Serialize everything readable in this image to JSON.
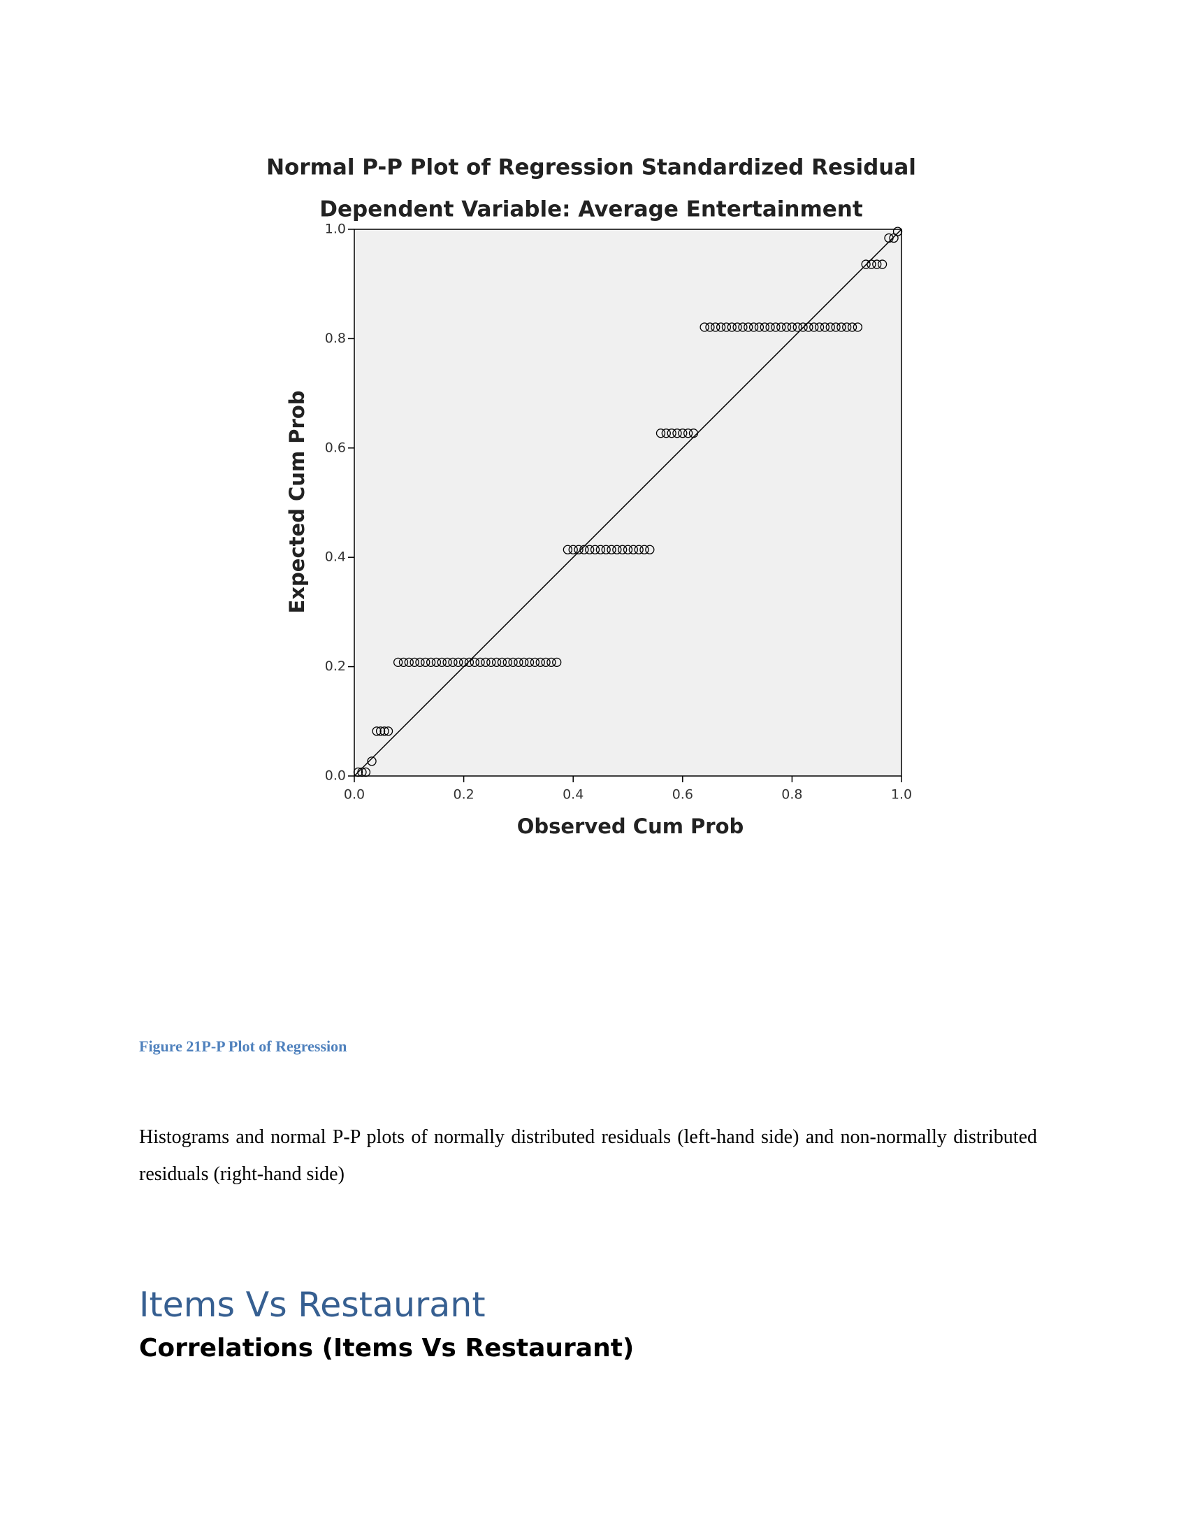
{
  "chart_data": {
    "type": "scatter",
    "title": "Normal P-P Plot of Regression Standardized Residual",
    "subtitle": "Dependent Variable: Average Entertainment",
    "x_label": "Observed Cum Prob",
    "y_label": "Expected Cum Prob",
    "xlim": [
      0,
      1
    ],
    "ylim": [
      0,
      1
    ],
    "xticks": [
      {
        "value": 0,
        "label": "0.0"
      },
      0.2,
      0.4,
      0.6,
      0.8,
      {
        "value": 1,
        "label": "1.0"
      }
    ],
    "yticks": [
      {
        "value": 0,
        "label": "0.0"
      },
      0.2,
      0.4,
      0.6,
      0.8,
      {
        "value": 1,
        "label": "1.0"
      }
    ],
    "color": "#000000",
    "background": "#f0f0f0",
    "x": [
      0.007,
      0.014,
      0.021,
      0.032,
      0.041,
      0.048,
      0.055,
      0.062,
      0.08,
      0.09,
      0.1,
      0.11,
      0.12,
      0.13,
      0.14,
      0.15,
      0.16,
      0.17,
      0.18,
      0.19,
      0.2,
      0.21,
      0.22,
      0.23,
      0.24,
      0.25,
      0.26,
      0.27,
      0.28,
      0.29,
      0.3,
      0.31,
      0.32,
      0.33,
      0.34,
      0.35,
      0.36,
      0.37,
      0.39,
      0.4,
      0.41,
      0.42,
      0.43,
      0.44,
      0.45,
      0.46,
      0.47,
      0.48,
      0.49,
      0.5,
      0.51,
      0.52,
      0.53,
      0.54,
      0.56,
      0.57,
      0.58,
      0.59,
      0.6,
      0.61,
      0.62,
      0.64,
      0.65,
      0.66,
      0.67,
      0.68,
      0.69,
      0.7,
      0.71,
      0.72,
      0.73,
      0.74,
      0.75,
      0.76,
      0.77,
      0.78,
      0.79,
      0.8,
      0.81,
      0.82,
      0.83,
      0.84,
      0.85,
      0.86,
      0.87,
      0.88,
      0.89,
      0.9,
      0.91,
      0.92,
      0.935,
      0.945,
      0.955,
      0.965,
      0.977,
      0.986,
      0.993
    ],
    "values": [
      0.007,
      0.007,
      0.007,
      0.027,
      0.082,
      0.082,
      0.082,
      0.082,
      0.208,
      0.208,
      0.208,
      0.208,
      0.208,
      0.208,
      0.208,
      0.208,
      0.208,
      0.208,
      0.208,
      0.208,
      0.208,
      0.208,
      0.208,
      0.208,
      0.208,
      0.208,
      0.208,
      0.208,
      0.208,
      0.208,
      0.208,
      0.208,
      0.208,
      0.208,
      0.208,
      0.208,
      0.208,
      0.208,
      0.414,
      0.414,
      0.414,
      0.414,
      0.414,
      0.414,
      0.414,
      0.414,
      0.414,
      0.414,
      0.414,
      0.414,
      0.414,
      0.414,
      0.414,
      0.414,
      0.627,
      0.627,
      0.627,
      0.627,
      0.627,
      0.627,
      0.627,
      0.821,
      0.821,
      0.821,
      0.821,
      0.821,
      0.821,
      0.821,
      0.821,
      0.821,
      0.821,
      0.821,
      0.821,
      0.821,
      0.821,
      0.821,
      0.821,
      0.821,
      0.821,
      0.821,
      0.821,
      0.821,
      0.821,
      0.821,
      0.821,
      0.821,
      0.821,
      0.821,
      0.821,
      0.821,
      0.936,
      0.936,
      0.936,
      0.936,
      0.984,
      0.984,
      0.996
    ]
  },
  "caption": "Figure 21P-P Plot of Regression",
  "paragraph": "Histograms and normal P-P plots of normally distributed residuals (left-hand side) and non-normally distributed residuals (right-hand side)",
  "heading": "Items Vs Restaurant",
  "subheading": "Correlations (Items Vs Restaurant)"
}
